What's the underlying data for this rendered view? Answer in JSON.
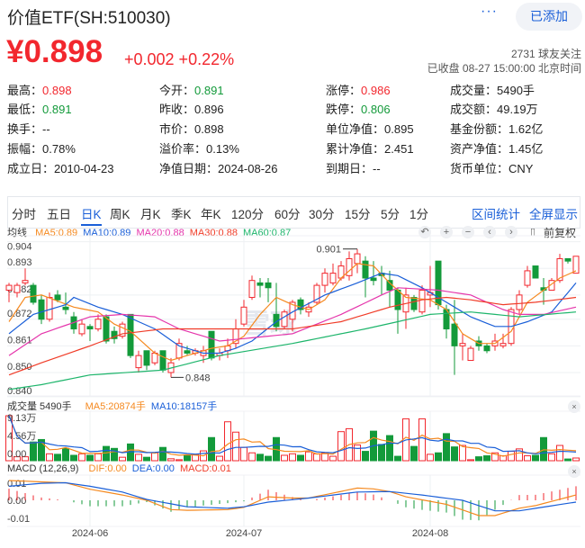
{
  "header": {
    "title": "价值ETF(SH:510030)",
    "more_label": "···",
    "add_button": "已添加",
    "price": "¥0.898",
    "change": "+0.002 +0.22%",
    "followers": "2731 球友关注",
    "status": "已收盘 08-27 15:00:00 北京时间"
  },
  "colors": {
    "up": "#f2272e",
    "down": "#139a3a",
    "accent": "#1a5fd8",
    "ma5": "#f5891f",
    "ma10": "#1a5fd8",
    "ma20": "#e535ab",
    "ma30": "#f03c28",
    "ma60": "#1db56b"
  },
  "info": [
    [
      {
        "label": "最高：",
        "value": "0.898",
        "tone": "up"
      },
      {
        "label": "今开：",
        "value": "0.891",
        "tone": "down"
      },
      {
        "label": "涨停：",
        "value": "0.986",
        "tone": "up"
      },
      {
        "label": "成交量：",
        "value": "5490手",
        "tone": ""
      }
    ],
    [
      {
        "label": "最低：",
        "value": "0.891",
        "tone": "down"
      },
      {
        "label": "昨收：",
        "value": "0.896",
        "tone": ""
      },
      {
        "label": "跌停：",
        "value": "0.806",
        "tone": "down"
      },
      {
        "label": "成交额：",
        "value": "49.19万",
        "tone": ""
      }
    ],
    [
      {
        "label": "换手：",
        "value": "--",
        "tone": ""
      },
      {
        "label": "市价：",
        "value": "0.898",
        "tone": ""
      },
      {
        "label": "单位净值：",
        "value": "0.895",
        "tone": ""
      },
      {
        "label": "基金份额：",
        "value": "1.62亿",
        "tone": ""
      }
    ],
    [
      {
        "label": "振幅：",
        "value": "0.78%",
        "tone": ""
      },
      {
        "label": "溢价率：",
        "value": "0.13%",
        "tone": ""
      },
      {
        "label": "累计净值：",
        "value": "2.451",
        "tone": ""
      },
      {
        "label": "资产净值：",
        "value": "1.45亿",
        "tone": ""
      }
    ],
    [
      {
        "label": "成立日：",
        "value": "2010-04-23",
        "tone": ""
      },
      {
        "label": "净值日期：",
        "value": "2024-08-26",
        "tone": ""
      },
      {
        "label": "到期日：",
        "value": "--",
        "tone": ""
      },
      {
        "label": "货币单位：",
        "value": "CNY",
        "tone": ""
      }
    ]
  ],
  "tabs": {
    "items": [
      "分时",
      "五日",
      "日K",
      "周K",
      "月K",
      "季K",
      "年K",
      "120分",
      "60分",
      "30分",
      "15分",
      "5分",
      "1分"
    ],
    "active": "日K",
    "links": [
      "区间统计",
      "全屏显示"
    ]
  },
  "ma_legend": {
    "label": "均线",
    "ma5": "MA5:0.89",
    "ma10": "MA10:0.89",
    "ma20": "MA20:0.88",
    "ma30": "MA30:0.88",
    "ma60": "MA60:0.87"
  },
  "toolbar": {
    "icons": [
      "undo-icon",
      "zoom-in-icon",
      "zoom-out-icon",
      "chevron-left-icon",
      "chevron-right-icon",
      "candle-icon"
    ],
    "glyphs": [
      "↶",
      "+",
      "−",
      "‹",
      "›",
      "▯"
    ],
    "adjust": "前复权"
  },
  "volume_legend": {
    "label": "成交量 5490手",
    "ma5": "MA5:20874手",
    "ma10": "MA10:18157手",
    "close": "×"
  },
  "macd_legend": {
    "label": "MACD (12,26,9)",
    "dif": "DIF:0.00",
    "dea": "DEA:0.00",
    "macd": "MACD:0.01",
    "close": "×"
  },
  "watermark": "雪球",
  "chart_data": {
    "type": "candlestick",
    "price_axis": {
      "ticks": [
        "0.904",
        "0.893",
        "0.882",
        "0.872",
        "0.861",
        "0.850",
        "0.840"
      ],
      "range": [
        0.84,
        0.904
      ]
    },
    "date_ticks": [
      {
        "label": "2024-06",
        "index": 11
      },
      {
        "label": "2024-07",
        "index": 30
      },
      {
        "label": "2024-08",
        "index": 53
      }
    ],
    "annotations": [
      {
        "label": "0.901",
        "index": 44,
        "value": 0.901
      },
      {
        "label": "0.848",
        "index": 21,
        "value": 0.848
      }
    ],
    "fields": [
      "open",
      "close",
      "high",
      "low"
    ],
    "ohlc": [
      [
        0.884,
        0.886,
        0.887,
        0.879
      ],
      [
        0.883,
        0.886,
        0.887,
        0.881
      ],
      [
        0.887,
        0.888,
        0.893,
        0.886
      ],
      [
        0.886,
        0.879,
        0.887,
        0.878
      ],
      [
        0.88,
        0.872,
        0.882,
        0.87
      ],
      [
        0.872,
        0.881,
        0.883,
        0.871
      ],
      [
        0.882,
        0.88,
        0.884,
        0.879
      ],
      [
        0.877,
        0.876,
        0.883,
        0.874
      ],
      [
        0.873,
        0.868,
        0.875,
        0.866
      ],
      [
        0.866,
        0.87,
        0.872,
        0.865
      ],
      [
        0.869,
        0.868,
        0.87,
        0.863
      ],
      [
        0.868,
        0.872,
        0.874,
        0.867
      ],
      [
        0.873,
        0.863,
        0.874,
        0.862
      ],
      [
        0.867,
        0.864,
        0.869,
        0.862
      ],
      [
        0.865,
        0.87,
        0.871,
        0.864
      ],
      [
        0.874,
        0.857,
        0.874,
        0.856
      ],
      [
        0.852,
        0.857,
        0.859,
        0.85
      ],
      [
        0.859,
        0.853,
        0.859,
        0.851
      ],
      [
        0.854,
        0.858,
        0.859,
        0.853
      ],
      [
        0.859,
        0.851,
        0.859,
        0.85
      ],
      [
        0.85,
        0.854,
        0.856,
        0.848
      ],
      [
        0.856,
        0.862,
        0.864,
        0.855
      ],
      [
        0.859,
        0.858,
        0.861,
        0.857
      ],
      [
        0.858,
        0.859,
        0.86,
        0.857
      ],
      [
        0.857,
        0.859,
        0.861,
        0.854
      ],
      [
        0.867,
        0.856,
        0.867,
        0.855
      ],
      [
        0.857,
        0.858,
        0.86,
        0.855
      ],
      [
        0.859,
        0.861,
        0.864,
        0.856
      ],
      [
        0.862,
        0.868,
        0.872,
        0.86
      ],
      [
        0.87,
        0.877,
        0.88,
        0.869
      ],
      [
        0.881,
        0.888,
        0.89,
        0.88
      ],
      [
        0.887,
        0.886,
        0.889,
        0.881
      ],
      [
        0.887,
        0.885,
        0.889,
        0.879
      ],
      [
        0.874,
        0.869,
        0.887,
        0.867
      ],
      [
        0.869,
        0.875,
        0.876,
        0.868
      ],
      [
        0.872,
        0.879,
        0.88,
        0.867
      ],
      [
        0.88,
        0.876,
        0.881,
        0.874
      ],
      [
        0.875,
        0.877,
        0.879,
        0.873
      ],
      [
        0.879,
        0.886,
        0.887,
        0.878
      ],
      [
        0.886,
        0.891,
        0.893,
        0.883
      ],
      [
        0.887,
        0.891,
        0.895,
        0.886
      ],
      [
        0.889,
        0.894,
        0.896,
        0.888
      ],
      [
        0.89,
        0.897,
        0.9,
        0.888
      ],
      [
        0.895,
        0.899,
        0.901,
        0.891
      ],
      [
        0.896,
        0.889,
        0.898,
        0.881
      ],
      [
        0.889,
        0.888,
        0.896,
        0.886
      ],
      [
        0.891,
        0.89,
        0.894,
        0.882
      ],
      [
        0.888,
        0.884,
        0.892,
        0.877
      ],
      [
        0.884,
        0.876,
        0.885,
        0.866
      ],
      [
        0.875,
        0.882,
        0.885,
        0.868
      ],
      [
        0.881,
        0.876,
        0.882,
        0.875
      ],
      [
        0.875,
        0.884,
        0.886,
        0.874
      ],
      [
        0.882,
        0.883,
        0.894,
        0.877
      ],
      [
        0.896,
        0.878,
        0.896,
        0.876
      ],
      [
        0.876,
        0.868,
        0.878,
        0.864
      ],
      [
        0.87,
        0.861,
        0.88,
        0.849
      ],
      [
        0.861,
        0.862,
        0.866,
        0.855
      ],
      [
        0.855,
        0.86,
        0.861,
        0.855
      ],
      [
        0.863,
        0.861,
        0.865,
        0.859
      ],
      [
        0.861,
        0.859,
        0.862,
        0.858
      ],
      [
        0.861,
        0.863,
        0.866,
        0.859
      ],
      [
        0.861,
        0.862,
        0.866,
        0.86
      ],
      [
        0.862,
        0.876,
        0.877,
        0.861
      ],
      [
        0.876,
        0.882,
        0.884,
        0.874
      ],
      [
        0.886,
        0.892,
        0.894,
        0.885
      ],
      [
        0.894,
        0.889,
        0.894,
        0.889
      ],
      [
        0.885,
        0.884,
        0.889,
        0.878
      ],
      [
        0.884,
        0.888,
        0.889,
        0.884
      ],
      [
        0.888,
        0.897,
        0.899,
        0.887
      ],
      [
        0.897,
        0.896,
        0.897,
        0.895
      ],
      [
        0.891,
        0.898,
        0.898,
        0.891
      ]
    ],
    "ma_keypoints": {
      "ma5": [
        [
          1,
          0.871
        ],
        [
          3,
          0.881
        ],
        [
          5,
          0.882
        ],
        [
          9,
          0.877
        ],
        [
          12,
          0.875
        ],
        [
          14,
          0.87
        ],
        [
          16,
          0.867
        ],
        [
          19,
          0.858
        ],
        [
          21,
          0.855
        ],
        [
          24,
          0.858
        ],
        [
          26,
          0.86
        ],
        [
          28,
          0.861
        ],
        [
          30,
          0.865
        ],
        [
          32,
          0.874
        ],
        [
          34,
          0.881
        ],
        [
          36,
          0.878
        ],
        [
          38,
          0.876
        ],
        [
          40,
          0.88
        ],
        [
          42,
          0.889
        ],
        [
          44,
          0.895
        ],
        [
          46,
          0.894
        ],
        [
          48,
          0.887
        ],
        [
          50,
          0.881
        ],
        [
          53,
          0.88
        ],
        [
          55,
          0.876
        ],
        [
          57,
          0.866
        ],
        [
          59,
          0.862
        ],
        [
          61,
          0.862
        ],
        [
          63,
          0.867
        ],
        [
          65,
          0.879
        ],
        [
          67,
          0.884
        ],
        [
          69,
          0.889
        ],
        [
          71,
          0.892
        ]
      ],
      "ma10": [
        [
          1,
          0.866
        ],
        [
          4,
          0.874
        ],
        [
          8,
          0.878
        ],
        [
          9,
          0.881
        ],
        [
          12,
          0.877
        ],
        [
          15,
          0.874
        ],
        [
          17,
          0.871
        ],
        [
          19,
          0.868
        ],
        [
          22,
          0.861
        ],
        [
          25,
          0.858
        ],
        [
          27,
          0.858
        ],
        [
          29,
          0.86
        ],
        [
          31,
          0.863
        ],
        [
          34,
          0.871
        ],
        [
          36,
          0.875
        ],
        [
          40,
          0.882
        ],
        [
          44,
          0.887
        ],
        [
          47,
          0.891
        ],
        [
          49,
          0.89
        ],
        [
          52,
          0.885
        ],
        [
          55,
          0.879
        ],
        [
          58,
          0.873
        ],
        [
          61,
          0.869
        ],
        [
          63,
          0.869
        ],
        [
          65,
          0.871
        ],
        [
          68,
          0.875
        ],
        [
          71,
          0.887
        ]
      ],
      "ma20": [
        [
          1,
          0.857
        ],
        [
          5,
          0.866
        ],
        [
          11,
          0.873
        ],
        [
          15,
          0.874
        ],
        [
          19,
          0.873
        ],
        [
          22,
          0.868
        ],
        [
          27,
          0.863
        ],
        [
          33,
          0.865
        ],
        [
          36,
          0.866
        ],
        [
          42,
          0.874
        ],
        [
          47,
          0.882
        ],
        [
          49,
          0.885
        ],
        [
          54,
          0.884
        ],
        [
          58,
          0.882
        ],
        [
          62,
          0.876
        ],
        [
          64,
          0.874
        ],
        [
          67,
          0.874
        ],
        [
          71,
          0.877
        ]
      ],
      "ma30": [
        [
          1,
          0.849
        ],
        [
          5,
          0.854
        ],
        [
          11,
          0.861
        ],
        [
          15,
          0.866
        ],
        [
          20,
          0.868
        ],
        [
          26,
          0.868
        ],
        [
          33,
          0.868
        ],
        [
          36,
          0.868
        ],
        [
          42,
          0.871
        ],
        [
          48,
          0.877
        ],
        [
          52,
          0.88
        ],
        [
          55,
          0.881
        ],
        [
          58,
          0.88
        ],
        [
          62,
          0.878
        ],
        [
          66,
          0.879
        ],
        [
          71,
          0.881
        ]
      ],
      "ma60": [
        [
          1,
          0.843
        ],
        [
          5,
          0.845
        ],
        [
          11,
          0.849
        ],
        [
          20,
          0.851
        ],
        [
          27,
          0.857
        ],
        [
          36,
          0.862
        ],
        [
          45,
          0.868
        ],
        [
          53,
          0.874
        ],
        [
          58,
          0.875
        ],
        [
          64,
          0.873
        ],
        [
          71,
          0.875
        ]
      ]
    },
    "volume": {
      "unit": "万",
      "ticks": [
        "9.13万",
        "4.56万",
        "0.00"
      ],
      "max": 9.13,
      "values": [
        9.13,
        0.8,
        0.8,
        3.8,
        4.3,
        1.4,
        1.3,
        2.5,
        1.1,
        1.4,
        1.1,
        1.4,
        2.9,
        2.5,
        0.7,
        3.4,
        1.3,
        0.7,
        1.6,
        2.7,
        0.4,
        0.2,
        1.1,
        1.3,
        2.0,
        4.7,
        0.9,
        7.9,
        5.8,
        2.7,
        1.6,
        1.3,
        0.9,
        4.7,
        1.1,
        1.4,
        1.1,
        1.8,
        1.4,
        1.6,
        0.9,
        5.9,
        6.5,
        3.2,
        1.9,
        6.0,
        3.3,
        5.1,
        0.9,
        8.5,
        2.9,
        8.5,
        1.3,
        1.6,
        5.5,
        2.8,
        3.1,
        0.2,
        0.8,
        1.0,
        1.6,
        1.0,
        1.9,
        2.4,
        1.0,
        1.1,
        4.7,
        1.4,
        3.1,
        0.35,
        0.549
      ]
    },
    "macd": {
      "ticks": [
        "0.01",
        "0.00",
        "-0.01"
      ],
      "dif_keypoints": [
        [
          1,
          0.0113
        ],
        [
          5,
          0.0105
        ],
        [
          8,
          0.01
        ],
        [
          11,
          0.0063
        ],
        [
          15,
          0.003
        ],
        [
          18,
          0
        ],
        [
          21,
          -0.0053
        ],
        [
          23,
          -0.0057
        ],
        [
          28,
          -0.0053
        ],
        [
          30,
          -0.004
        ],
        [
          33,
          0.002
        ],
        [
          36,
          0.0013
        ],
        [
          38,
          0.0013
        ],
        [
          44,
          0.007
        ],
        [
          46,
          0.0065
        ],
        [
          48,
          0.005
        ],
        [
          50,
          0.002
        ],
        [
          55,
          -0.0023
        ],
        [
          59,
          -0.0087
        ],
        [
          61,
          -0.0087
        ],
        [
          64,
          -0.0045
        ],
        [
          66,
          -0.003
        ],
        [
          71,
          0.003
        ]
      ],
      "dea_keypoints": [
        [
          1,
          0.008
        ],
        [
          5,
          0.0097
        ],
        [
          8,
          0.01
        ],
        [
          11,
          0.008
        ],
        [
          15,
          0.0047
        ],
        [
          18,
          0.0005
        ],
        [
          23,
          -0.0037
        ],
        [
          28,
          -0.0045
        ],
        [
          30,
          -0.0037
        ],
        [
          33,
          -0.001
        ],
        [
          38,
          0.0013
        ],
        [
          44,
          0.0047
        ],
        [
          48,
          0.005
        ],
        [
          52,
          0.003
        ],
        [
          57,
          0
        ],
        [
          61,
          -0.006
        ],
        [
          64,
          -0.006
        ],
        [
          71,
          -0.001
        ]
      ]
    }
  }
}
